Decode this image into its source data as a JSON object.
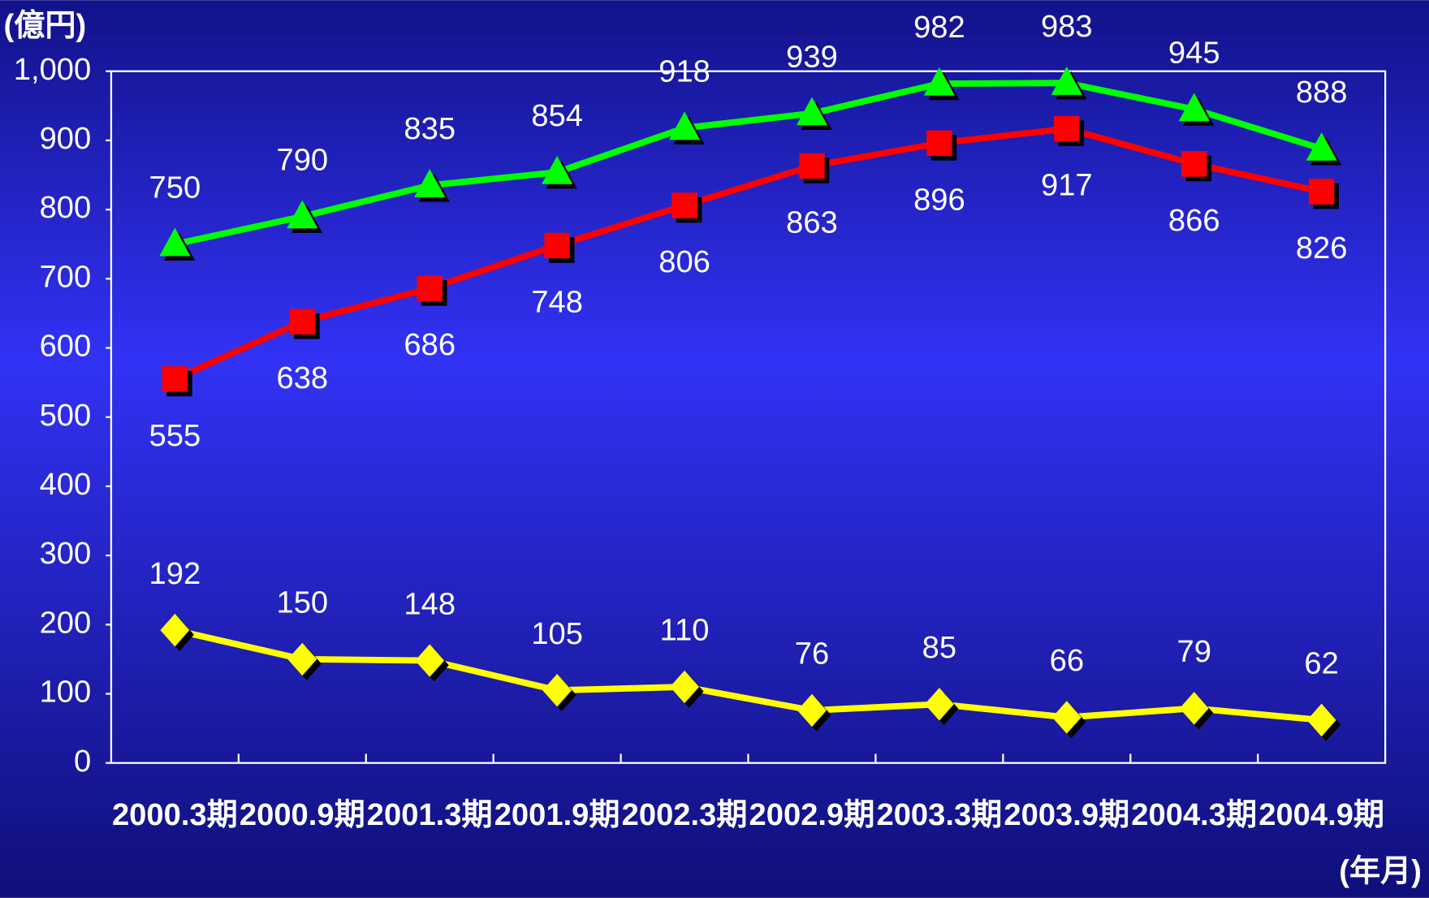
{
  "chart_data": {
    "type": "line",
    "y_label": "(億円)",
    "x_label": "(年月)",
    "categories": [
      "2000.3期",
      "2000.9期",
      "2001.3期",
      "2001.9期",
      "2002.3期",
      "2002.9期",
      "2003.3期",
      "2003.9期",
      "2004.3期",
      "2004.9期"
    ],
    "series": [
      {
        "color": "#00ff00",
        "marker": "triangle",
        "label_position": "above",
        "values": [
          750,
          790,
          835,
          854,
          918,
          939,
          982,
          983,
          945,
          888
        ]
      },
      {
        "color": "#ff0000",
        "marker": "square",
        "label_position": "below",
        "values": [
          555,
          638,
          686,
          748,
          806,
          863,
          896,
          917,
          866,
          826
        ]
      },
      {
        "color": "#ffff00",
        "marker": "diamond",
        "label_position": "above",
        "values": [
          192,
          150,
          148,
          105,
          110,
          76,
          85,
          66,
          79,
          62
        ]
      }
    ],
    "ylim": [
      0,
      1000
    ],
    "yticks": [
      0,
      100,
      200,
      300,
      400,
      500,
      600,
      700,
      800,
      900,
      {
        "value": 1000,
        "label": "1,000"
      }
    ]
  }
}
